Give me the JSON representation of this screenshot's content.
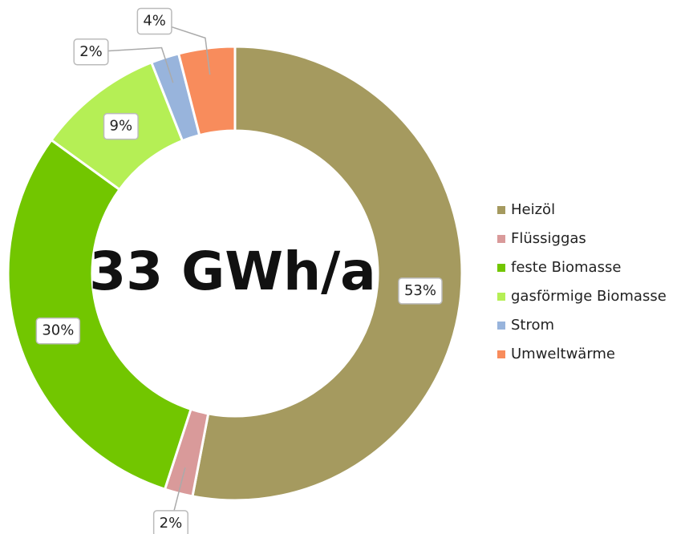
{
  "chart_data": {
    "type": "donut",
    "center_text": "33 GWh/a",
    "categories": [
      "Heizöl",
      "Flüssiggas",
      "feste Biomasse",
      "gasförmige Biomasse",
      "Strom",
      "Umweltwärme"
    ],
    "values": [
      53,
      2,
      30,
      9,
      2,
      4
    ],
    "value_labels": [
      "53%",
      "2%",
      "30%",
      "9%",
      "2%",
      "4%"
    ],
    "colors": [
      "#a59a5f",
      "#d99a9a",
      "#72c600",
      "#b5ef55",
      "#98b4dc",
      "#f88c5c"
    ],
    "legend": "right"
  }
}
